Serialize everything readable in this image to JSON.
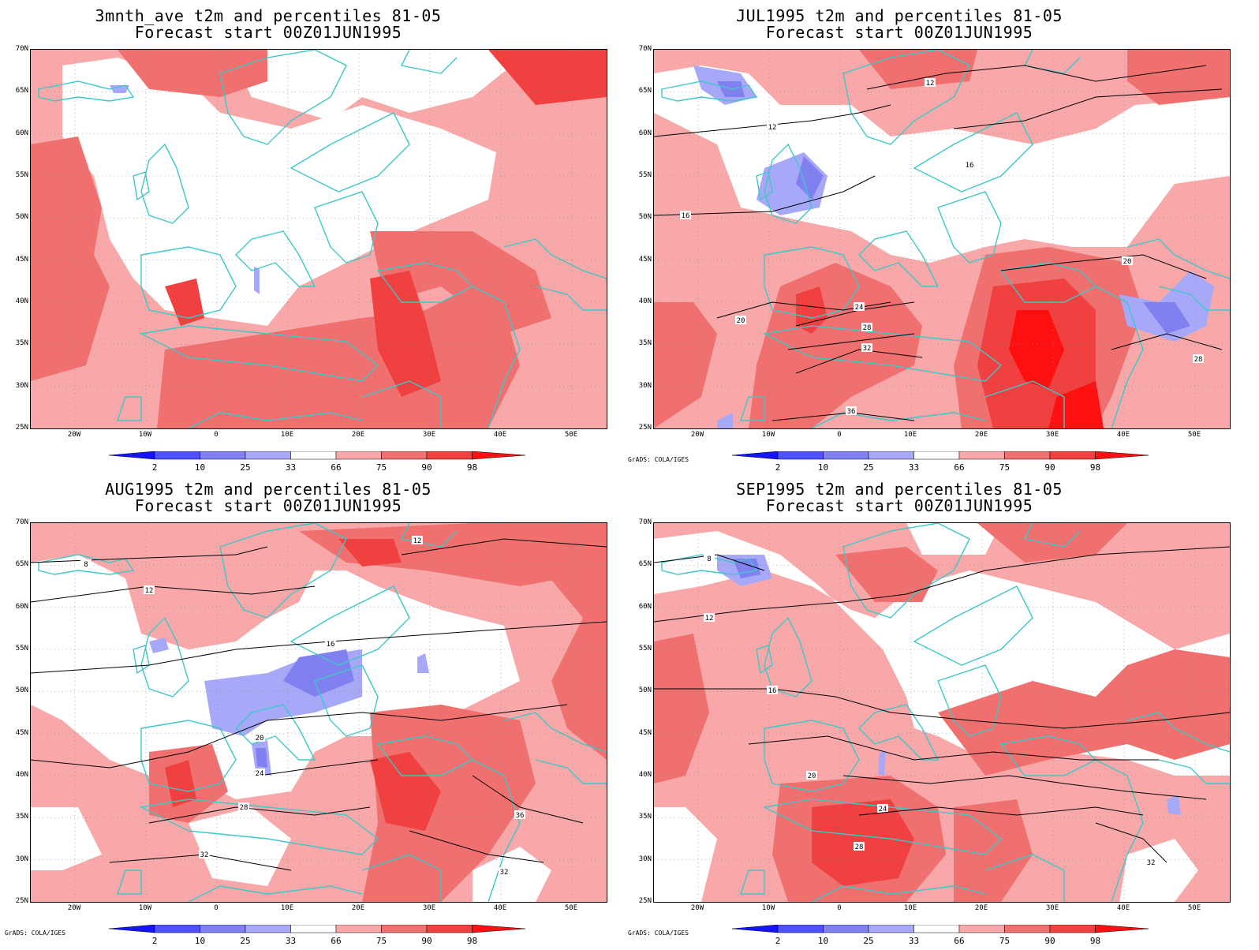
{
  "panels": [
    {
      "id": "tl",
      "title1": "3mnth_ave t2m and percentiles 81-05",
      "title2": "Forecast start 00Z01JUN1995",
      "credit": ""
    },
    {
      "id": "tr",
      "title1": "JUL1995 t2m and percentiles 81-05",
      "title2": "Forecast start 00Z01JUN1995",
      "credit": "GrADS: COLA/IGES"
    },
    {
      "id": "bl",
      "title1": "AUG1995 t2m and percentiles 81-05",
      "title2": "Forecast start 00Z01JUN1995",
      "credit": "GrADS: COLA/IGES"
    },
    {
      "id": "br",
      "title1": "SEP1995 t2m and percentiles 81-05",
      "title2": "Forecast start 00Z01JUN1995",
      "credit": "GrADS: COLA/IGES"
    }
  ],
  "lat_labels": [
    "70N",
    "65N",
    "60N",
    "55N",
    "50N",
    "45N",
    "40N",
    "35N",
    "30N",
    "25N"
  ],
  "lon_labels": [
    "20W",
    "10W",
    "0",
    "10E",
    "20E",
    "30E",
    "40E",
    "50E"
  ],
  "colorbar": {
    "labels": [
      "2",
      "10",
      "25",
      "33",
      "66",
      "75",
      "90",
      "98"
    ],
    "colors": {
      "below_2": "#1414ff",
      "p2_10": "#5050ff",
      "p10_25": "#8080f0",
      "p25_33": "#a8a8f8",
      "neutral": "#ffffff",
      "p66_75": "#f8a8a8",
      "p75_90": "#f07070",
      "p90_98": "#f04040",
      "above_98": "#ff1010"
    }
  },
  "map_colors": {
    "coast": "#3cc8c8",
    "contour": "#000000",
    "grid": "#888888"
  }
}
